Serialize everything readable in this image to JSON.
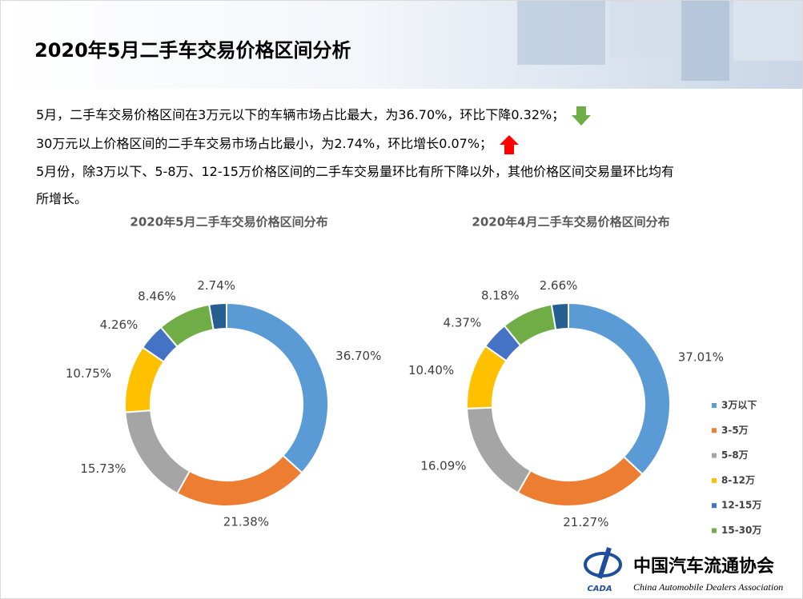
{
  "header": {
    "title": "2020年5月二手车交易价格区间分析"
  },
  "paragraphs": [
    "5月，二手车交易价格区间在3万元以下的车辆市场占比最大，为36.70%，环比下降0.32%；",
    "30万元以上价格区间的二手车交易市场占比最小，为2.74%，环比增长0.07%；",
    "5月份，除3万以下、5-8万、12-15万价格区间的二手车交易量环比有所下降以外，其他价格区间交易量环比均有所增长。"
  ],
  "chart_data": [
    {
      "type": "doughnut",
      "title": "2020年5月二手车交易价格区间分布",
      "values": [
        36.7,
        21.38,
        15.73,
        10.75,
        4.26,
        8.46,
        2.74
      ],
      "value_labels": [
        "36.70%",
        "21.38%",
        "15.73%",
        "10.75%",
        "4.26%",
        "8.46%",
        "2.74%"
      ],
      "colors": [
        "#5b9bd5",
        "#ed7d31",
        "#a5a5a5",
        "#ffc000",
        "#4472c4",
        "#70ad47",
        "#255e91"
      ]
    },
    {
      "type": "doughnut",
      "title": "2020年4月二手车交易价格区间分布",
      "categories": [
        "3万以下",
        "3-5万",
        "5-8万",
        "8-12万",
        "12-15万",
        "15-30万",
        null
      ],
      "values": [
        37.01,
        21.27,
        16.09,
        10.4,
        4.37,
        8.18,
        2.66
      ],
      "value_labels": [
        "37.01%",
        "21.27%",
        "16.09%",
        "10.40%",
        "4.37%",
        "8.18%",
        "2.66%"
      ],
      "colors": [
        "#5b9bd5",
        "#ed7d31",
        "#a5a5a5",
        "#ffc000",
        "#4472c4",
        "#70ad47",
        "#255e91"
      ],
      "legend": "right"
    }
  ],
  "logo": {
    "name": "中国汽车流通协会",
    "english": "China Automobile Dealers Association",
    "abbr": "CADA"
  }
}
